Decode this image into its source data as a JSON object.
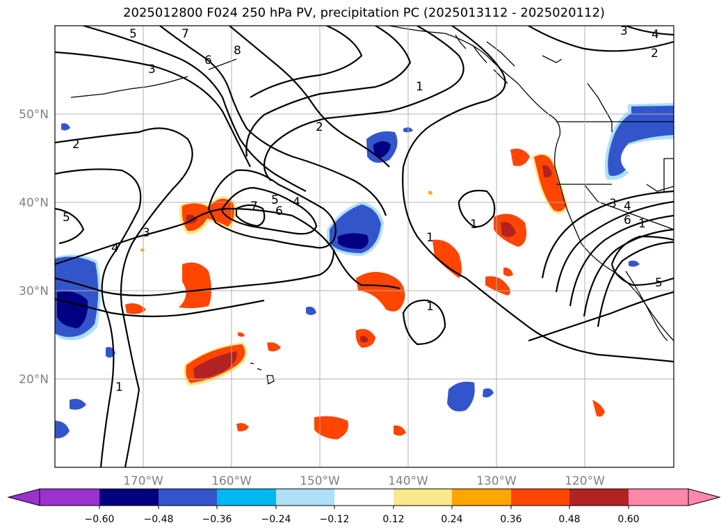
{
  "title": "2025012800 F024 250 hPa PV, precipitation PC (2025013112 - 2025020112)",
  "map": {
    "projection": "equirectangular",
    "lon_range": [
      -180,
      -110
    ],
    "lat_range": [
      10,
      60
    ],
    "lon_ticks": [
      {
        "value": -170,
        "label": "170°W"
      },
      {
        "value": -160,
        "label": "160°W"
      },
      {
        "value": -150,
        "label": "150°W"
      },
      {
        "value": -140,
        "label": "140°W"
      },
      {
        "value": -130,
        "label": "130°W"
      },
      {
        "value": -120,
        "label": "120°W"
      }
    ],
    "lat_ticks": [
      {
        "value": 20,
        "label": "20°N"
      },
      {
        "value": 30,
        "label": "30°N"
      },
      {
        "value": 40,
        "label": "40°N"
      },
      {
        "value": 50,
        "label": "50°N"
      }
    ],
    "gridlines": true
  },
  "pv_contour_labels": [
    "5",
    "7",
    "8",
    "6",
    "3",
    "2",
    "1",
    "2",
    "5",
    "4",
    "3",
    "5",
    "4",
    "6",
    "7",
    "1",
    "1",
    "1",
    "1",
    "3",
    "4",
    "6",
    "1",
    "5",
    "3",
    "4",
    "2"
  ],
  "colorbar": {
    "ticks": [
      "−0.60",
      "−0.48",
      "−0.36",
      "−0.24",
      "−0.12",
      "0.12",
      "0.24",
      "0.36",
      "0.48",
      "0.60"
    ],
    "colors": [
      "#9933cc",
      "#000080",
      "#3355cc",
      "#00b8f0",
      "#aee0f8",
      "#ffffff",
      "#fbe88c",
      "#ffa500",
      "#ff4500",
      "#b22222",
      "#ff88aa"
    ],
    "extend": "both"
  },
  "colors": {
    "land_outline": "#000000",
    "contour": "#000000",
    "grid": "#b0b0b0",
    "tick_label": "#808080"
  }
}
